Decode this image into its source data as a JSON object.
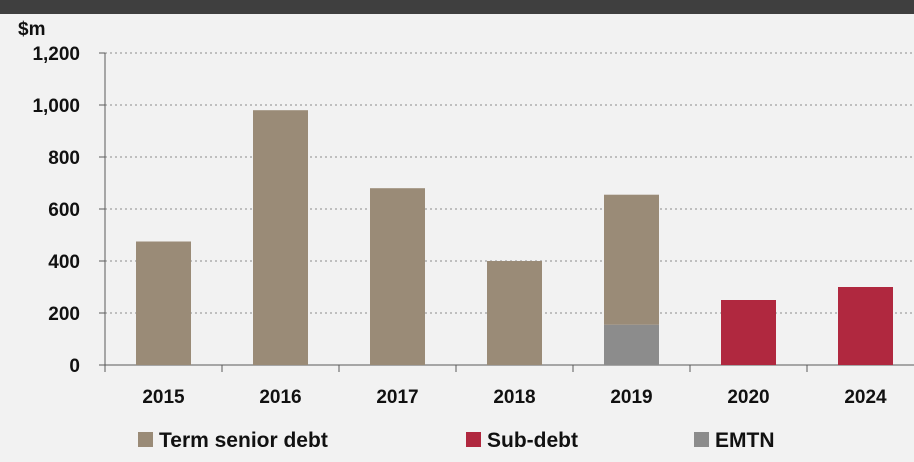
{
  "chart_data": {
    "type": "bar",
    "title": "",
    "ylabel": "$m",
    "xlabel": "",
    "categories": [
      "2015",
      "2016",
      "2017",
      "2018",
      "2019",
      "2020",
      "2024"
    ],
    "series": [
      {
        "name": "Term senior debt",
        "color": "#9a8b77",
        "values": [
          475,
          980,
          680,
          400,
          500,
          0,
          0
        ]
      },
      {
        "name": "Sub-debt",
        "color": "#b0283f",
        "values": [
          0,
          0,
          0,
          0,
          0,
          250,
          300
        ]
      },
      {
        "name": "EMTN",
        "color": "#8c8c8c",
        "values": [
          0,
          0,
          0,
          0,
          155,
          0,
          0
        ]
      }
    ],
    "stack_order": [
      "EMTN",
      "Term senior debt",
      "Sub-debt"
    ],
    "ylim": [
      0,
      1200
    ],
    "yticks": [
      0,
      200,
      400,
      600,
      800,
      1000,
      1200
    ],
    "ytick_labels": [
      "0",
      "200",
      "400",
      "600",
      "800",
      "1,000",
      "1,200"
    ],
    "grid": "dotted horizontal",
    "legend_placement": "bottom"
  }
}
